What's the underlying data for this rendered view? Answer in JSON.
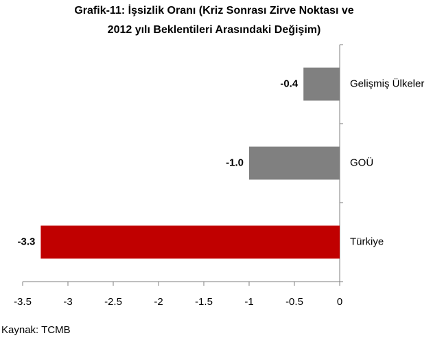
{
  "chart_data": {
    "type": "barh",
    "title": [
      "Grafik-11: İşsizlik Oranı (Kriz Sonrası Zirve Noktası ve",
      "2012 yılı Beklentileri Arasındaki Değişim)"
    ],
    "categories": [
      "Gelişmiş Ülkeler",
      "GOÜ",
      "Türkiye"
    ],
    "values": [
      -0.4,
      -1.0,
      -3.3
    ],
    "value_labels": [
      "-0.4",
      "-1.0",
      "-3.3"
    ],
    "colors": [
      "#808080",
      "#808080",
      "#c00000"
    ],
    "xlim": [
      -3.5,
      0
    ],
    "xticks": [
      -3.5,
      -3,
      -2.5,
      -2,
      -1.5,
      -1,
      -0.5,
      0
    ],
    "source": "Kaynak: TCMB"
  }
}
